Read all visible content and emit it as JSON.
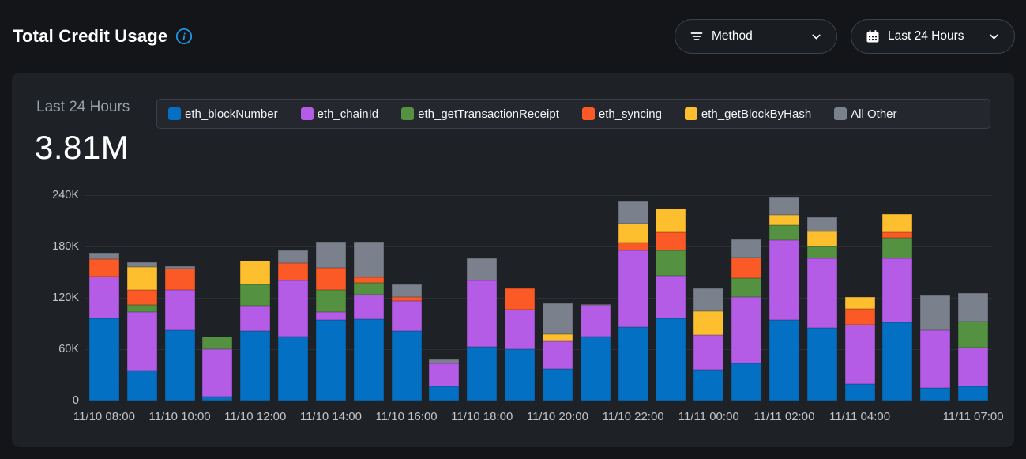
{
  "header": {
    "title": "Total Credit Usage",
    "filters": [
      {
        "id": "method",
        "label": "Method",
        "icon": "filter-icon"
      },
      {
        "id": "range",
        "label": "Last 24 Hours",
        "icon": "calendar-icon"
      }
    ]
  },
  "card": {
    "period_label": "Last 24 Hours",
    "total_value": "3.81M"
  },
  "colors": {
    "accent_info": "#1e9df2",
    "page_bg": "#131519",
    "card_bg": "#1e2126",
    "legend_bg": "#24272d",
    "border": "#3a3f47"
  },
  "chart_data": {
    "type": "bar",
    "stacked": true,
    "title": "",
    "xlabel": "",
    "ylabel": "",
    "unit": "credits",
    "bars": 24,
    "ylim": [
      0,
      240000
    ],
    "grid": true,
    "legend_position": "top",
    "yticks": [
      {
        "value": 0,
        "label": "0"
      },
      {
        "value": 60000,
        "label": "60K"
      },
      {
        "value": 120000,
        "label": "120K"
      },
      {
        "value": 180000,
        "label": "180K"
      },
      {
        "value": 240000,
        "label": "240K"
      }
    ],
    "xticks": [
      {
        "bar": 0,
        "label": "11/10 08:00"
      },
      {
        "bar": 2,
        "label": "11/10 10:00"
      },
      {
        "bar": 4,
        "label": "11/10 12:00"
      },
      {
        "bar": 6,
        "label": "11/10 14:00"
      },
      {
        "bar": 8,
        "label": "11/10 16:00"
      },
      {
        "bar": 10,
        "label": "11/10 18:00"
      },
      {
        "bar": 12,
        "label": "11/10 20:00"
      },
      {
        "bar": 14,
        "label": "11/10 22:00"
      },
      {
        "bar": 16,
        "label": "11/11 00:00"
      },
      {
        "bar": 18,
        "label": "11/11 02:00"
      },
      {
        "bar": 20,
        "label": "11/11 04:00"
      },
      {
        "bar": 23,
        "label": "11/11 07:00"
      }
    ],
    "series": [
      {
        "name": "eth_blockNumber",
        "color": "#0470c4",
        "values": [
          96000,
          35000,
          82000,
          5000,
          81000,
          75000,
          94000,
          95000,
          81000,
          17000,
          63000,
          60000,
          37000,
          75000,
          86000,
          96000,
          36000,
          43000,
          94000,
          85000,
          19000,
          91000,
          15000,
          17000
        ]
      },
      {
        "name": "eth_chainId",
        "color": "#b45ce6",
        "values": [
          49000,
          68000,
          47000,
          55000,
          30000,
          65000,
          9000,
          29000,
          35000,
          26000,
          77000,
          46000,
          32000,
          37000,
          89000,
          50000,
          41000,
          78000,
          93000,
          81000,
          70000,
          75000,
          67000,
          45000
        ]
      },
      {
        "name": "eth_getTransactionReceipt",
        "color": "#549140",
        "values": [
          0,
          9000,
          0,
          15000,
          25000,
          0,
          26000,
          14000,
          0,
          0,
          0,
          0,
          0,
          1000,
          0,
          29000,
          0,
          22000,
          18000,
          14000,
          0,
          24000,
          0,
          30000
        ]
      },
      {
        "name": "eth_syncing",
        "color": "#fb5a26",
        "values": [
          20000,
          17000,
          25000,
          0,
          0,
          21000,
          26000,
          6000,
          5000,
          0,
          0,
          25000,
          0,
          0,
          10000,
          22000,
          0,
          24000,
          0,
          0,
          18000,
          7000,
          0,
          0
        ]
      },
      {
        "name": "eth_getBlockByHash",
        "color": "#fdbf2d",
        "values": [
          0,
          27000,
          0,
          0,
          27000,
          0,
          0,
          0,
          0,
          0,
          0,
          0,
          9000,
          0,
          22000,
          27000,
          27000,
          0,
          12000,
          18000,
          14000,
          21000,
          0,
          0
        ]
      },
      {
        "name": "All Other",
        "color": "#7a818c",
        "values": [
          8000,
          6000,
          3000,
          0,
          0,
          14000,
          31000,
          42000,
          15000,
          5000,
          26000,
          0,
          36000,
          0,
          26000,
          0,
          27000,
          21000,
          21000,
          16000,
          0,
          0,
          41000,
          34000
        ]
      }
    ]
  }
}
